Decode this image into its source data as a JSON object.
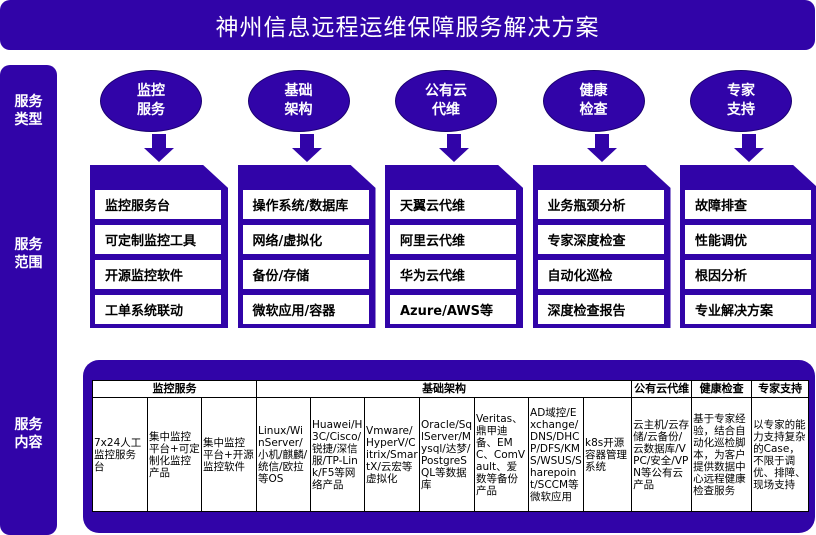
{
  "title": "神州信息远程运维保障服务解决方案",
  "side_labels": [
    "服务\n类型",
    "服务\n范围",
    "服务\n内容"
  ],
  "color": "#3104a8",
  "columns": [
    {
      "type": "监控\n服务",
      "items": [
        "监控服务台",
        "可定制监控工具",
        "开源监控软件",
        "工单系统联动"
      ]
    },
    {
      "type": "基础\n架构",
      "items": [
        "操作系统/数据库",
        "网络/虚拟化",
        "备份/存储",
        "微软应用/容器"
      ]
    },
    {
      "type": "公有云\n代维",
      "items": [
        "天翼云代维",
        "阿里云代维",
        "华为云代维",
        "Azure/AWS等"
      ]
    },
    {
      "type": "健康\n检查",
      "items": [
        "业务瓶颈分析",
        "专家深度检查",
        "自动化巡检",
        "深度检查报告"
      ]
    },
    {
      "type": "专家\n支持",
      "items": [
        "故障排查",
        "性能调优",
        "根因分析",
        "专业解决方案"
      ]
    }
  ],
  "table": {
    "headers": [
      {
        "label": "监控服务",
        "span": 3
      },
      {
        "label": "基础架构",
        "span": 7
      },
      {
        "label": "公有云代维",
        "span": 1
      },
      {
        "label": "健康检查",
        "span": 1
      },
      {
        "label": "专家支持",
        "span": 1
      }
    ],
    "cells": [
      "7x24人工监控服务台",
      "集中监控平台+可定制化监控产品",
      "集中监控平台+开源监控软件",
      "Linux/WinServer/小机/麒麟/统信/欧拉等OS",
      "Huawei/H3C/Cisco/锐捷/深信服/TP-Link/F5等网络产品",
      "Vmware/HyperV/Citrix/SmartX/云宏等虚拟化",
      "Oracle/SqlServer/Mysql/达梦/PostgreSQL等数据库",
      "Veritas、鼎甲迪备、EMC、ComVault、爱数等备份产品",
      "AD域控/Exchange/DNS/DHCP/DFS/KMS/WSUS/Sharepoint/SCCM等微软应用",
      "k8s开源容器管理系统",
      "云主机/云存储/云备份/云数据库/VPC/安全/VPN等公有云产品",
      "基于专家经验，结合自动化巡检脚本，为客户提供数据中心远程健康检查服务",
      "以专家的能力支持复杂的Case，不限于调优、排障、现场支持"
    ]
  }
}
